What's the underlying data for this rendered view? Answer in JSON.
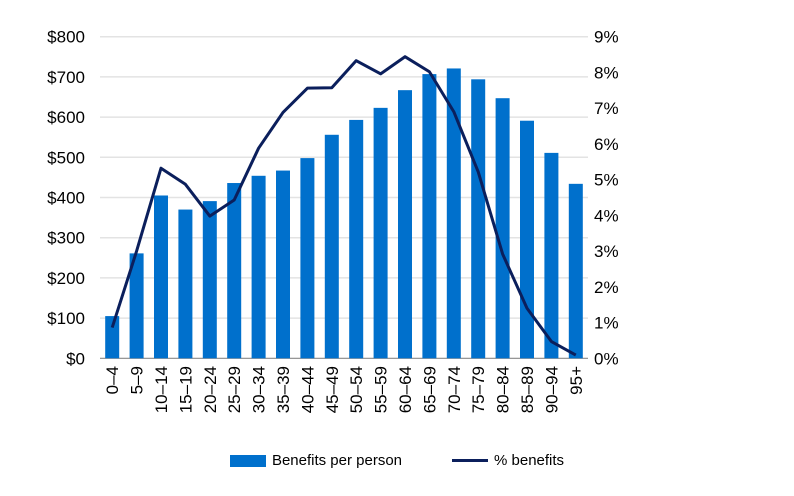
{
  "chart_data": {
    "type": "bar+line",
    "categories": [
      "0–4",
      "5–9",
      "10–14",
      "15–19",
      "20–24",
      "25–29",
      "30–34",
      "35–39",
      "40–44",
      "45–49",
      "50–54",
      "55–59",
      "60–64",
      "65–69",
      "70–74",
      "75–79",
      "80–84",
      "85–89",
      "90–94",
      "95+"
    ],
    "series": [
      {
        "name": "Benefits per person",
        "type": "bar",
        "axis": "left",
        "color": "#0070CC",
        "values": [
          105,
          261,
          405,
          370,
          391,
          436,
          454,
          467,
          498,
          556,
          593,
          623,
          667,
          707,
          721,
          694,
          647,
          591,
          511,
          434
        ]
      },
      {
        "name": "% benefits",
        "type": "line",
        "axis": "right",
        "color": "#0B1F5C",
        "values": [
          0.86,
          3.0,
          5.32,
          4.87,
          3.98,
          4.43,
          5.88,
          6.88,
          7.56,
          7.57,
          8.33,
          7.96,
          8.44,
          8.02,
          6.9,
          5.22,
          2.92,
          1.4,
          0.47,
          0.09
        ]
      }
    ],
    "left_axis": {
      "ylim": [
        0,
        800
      ],
      "ticks": [
        "$0",
        "$100",
        "$200",
        "$300",
        "$400",
        "$500",
        "$600",
        "$700",
        "$800"
      ]
    },
    "right_axis": {
      "ylim": [
        0,
        9
      ],
      "ticks": [
        "0%",
        "1%",
        "2%",
        "3%",
        "4%",
        "5%",
        "6%",
        "7%",
        "8%",
        "9%"
      ]
    },
    "grid": true,
    "legend": "bottom"
  }
}
